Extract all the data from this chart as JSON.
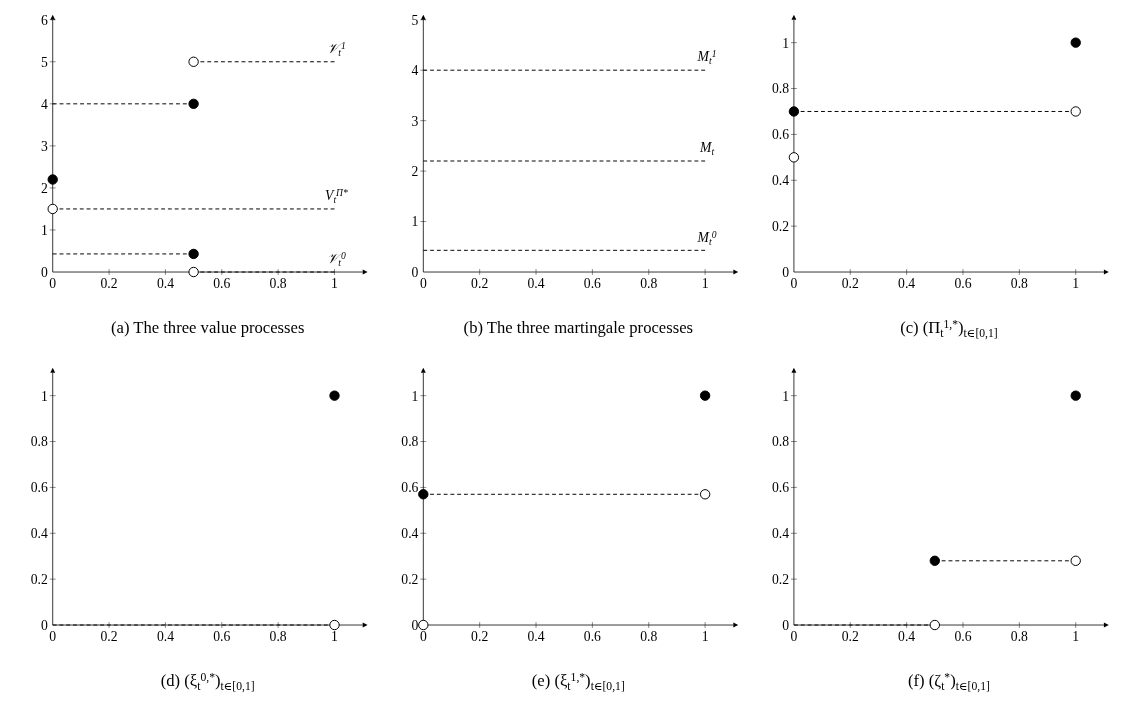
{
  "chart_data": [
    {
      "type": "line",
      "title": "(a) The three value processes",
      "xlim": [
        0,
        1.1
      ],
      "ylim": [
        0,
        6
      ],
      "xticks": [
        0,
        0.2,
        0.4,
        0.6,
        0.8,
        1
      ],
      "yticks": [
        0,
        1,
        2,
        3,
        4,
        5,
        6
      ],
      "series": [
        {
          "line_style": "dashed",
          "color": "#000000",
          "x": [
            0,
            0.5
          ],
          "values": [
            4,
            4
          ]
        },
        {
          "name": "𝒱$_{t}$$^{1}$",
          "line_style": "dashed",
          "color": "#000000",
          "x": [
            0.5,
            1
          ],
          "values": [
            5,
            5
          ]
        },
        {
          "name": "V$_{t}$$^{Π*}$",
          "line_style": "dashed",
          "color": "#000000",
          "x": [
            0,
            1
          ],
          "values": [
            1.5,
            1.5
          ]
        },
        {
          "line_style": "dashed",
          "color": "#000000",
          "x": [
            0,
            0.5
          ],
          "values": [
            0.43,
            0.43
          ]
        },
        {
          "name": "𝒱$_{t}$$^{0}$",
          "line_style": "dashed",
          "color": "#000000",
          "x": [
            0.5,
            1
          ],
          "values": [
            0,
            0
          ]
        },
        {
          "type": "scatter",
          "marker": "circle",
          "color": "#000000",
          "x": [
            0.5,
            0,
            0.5
          ],
          "values": [
            4,
            2.2,
            0.43
          ]
        },
        {
          "type": "scatter",
          "marker": "circle",
          "color": "#ffffff",
          "x": [
            0.5,
            0,
            0.5
          ],
          "values": [
            5,
            1.5,
            0
          ]
        }
      ]
    },
    {
      "type": "line",
      "title": "(b) The three martingale processes",
      "xlim": [
        0,
        1.1
      ],
      "ylim": [
        0,
        5
      ],
      "xticks": [
        0,
        0.2,
        0.4,
        0.6,
        0.8,
        1
      ],
      "yticks": [
        0,
        1,
        2,
        3,
        4,
        5
      ],
      "series": [
        {
          "name": "M$_{t}$$^{1}$",
          "line_style": "dashed",
          "color": "#000000",
          "x": [
            0,
            1
          ],
          "values": [
            4,
            4
          ]
        },
        {
          "name": "M$_{t}$",
          "line_style": "dashed",
          "color": "#000000",
          "x": [
            0,
            1
          ],
          "values": [
            2.2,
            2.2
          ]
        },
        {
          "name": "M$_{t}$$^{0}$",
          "line_style": "dashed",
          "color": "#000000",
          "x": [
            0,
            1
          ],
          "values": [
            0.43,
            0.43
          ]
        }
      ]
    },
    {
      "type": "line",
      "title": "(c) (Π$_{t}$$^{1,*}$)$_{t∈[0,1]}$",
      "xlim": [
        0,
        1.1
      ],
      "ylim": [
        0,
        1.1
      ],
      "xticks": [
        0,
        0.2,
        0.4,
        0.6,
        0.8,
        1
      ],
      "yticks": [
        0,
        0.2,
        0.4,
        0.6,
        0.8,
        1
      ],
      "series": [
        {
          "line_style": "dashed",
          "color": "#000000",
          "x": [
            0,
            1
          ],
          "values": [
            0.7,
            0.7
          ]
        },
        {
          "type": "scatter",
          "marker": "circle",
          "color": "#000000",
          "x": [
            0,
            1
          ],
          "values": [
            0.7,
            1
          ]
        },
        {
          "type": "scatter",
          "marker": "circle",
          "color": "#ffffff",
          "x": [
            0,
            1
          ],
          "values": [
            0.5,
            0.7
          ]
        }
      ]
    },
    {
      "type": "line",
      "title": "(d) (ξ$_{t}$$^{0,*}$)$_{t∈[0,1]}$",
      "xlim": [
        0,
        1.1
      ],
      "ylim": [
        0,
        1.1
      ],
      "xticks": [
        0,
        0.2,
        0.4,
        0.6,
        0.8,
        1
      ],
      "yticks": [
        0,
        0.2,
        0.4,
        0.6,
        0.8,
        1
      ],
      "series": [
        {
          "line_style": "dashed",
          "color": "#000000",
          "x": [
            0,
            1
          ],
          "values": [
            0,
            0
          ]
        },
        {
          "type": "scatter",
          "marker": "circle",
          "color": "#000000",
          "x": [
            1
          ],
          "values": [
            1
          ]
        },
        {
          "type": "scatter",
          "marker": "circle",
          "color": "#ffffff",
          "x": [
            1
          ],
          "values": [
            0
          ]
        }
      ]
    },
    {
      "type": "line",
      "title": "(e) (ξ$_{t}$$^{1,*}$)$_{t∈[0,1]}$",
      "xlim": [
        0,
        1.1
      ],
      "ylim": [
        0,
        1.1
      ],
      "xticks": [
        0,
        0.2,
        0.4,
        0.6,
        0.8,
        1
      ],
      "yticks": [
        0,
        0.2,
        0.4,
        0.6,
        0.8,
        1
      ],
      "series": [
        {
          "line_style": "dashed",
          "color": "#000000",
          "x": [
            0,
            1
          ],
          "values": [
            0.57,
            0.57
          ]
        },
        {
          "type": "scatter",
          "marker": "circle",
          "color": "#000000",
          "x": [
            0,
            1
          ],
          "values": [
            0.57,
            1
          ]
        },
        {
          "type": "scatter",
          "marker": "circle",
          "color": "#ffffff",
          "x": [
            0,
            1
          ],
          "values": [
            0,
            0.57
          ]
        }
      ]
    },
    {
      "type": "line",
      "title": "(f) (ζ$_{t}$$^{*}$)$_{t∈[0,1]}$",
      "xlim": [
        0,
        1.1
      ],
      "ylim": [
        0,
        1.1
      ],
      "xticks": [
        0,
        0.2,
        0.4,
        0.6,
        0.8,
        1
      ],
      "yticks": [
        0,
        0.2,
        0.4,
        0.6,
        0.8,
        1
      ],
      "series": [
        {
          "line_style": "dashed",
          "color": "#000000",
          "x": [
            0,
            0.5
          ],
          "values": [
            0,
            0
          ]
        },
        {
          "line_style": "dashed",
          "color": "#000000",
          "x": [
            0.5,
            1
          ],
          "values": [
            0.28,
            0.28
          ]
        },
        {
          "type": "scatter",
          "marker": "circle",
          "color": "#000000",
          "x": [
            0.5,
            1
          ],
          "values": [
            0.28,
            1
          ]
        },
        {
          "type": "scatter",
          "marker": "circle",
          "color": "#ffffff",
          "x": [
            0.5,
            1
          ],
          "values": [
            0,
            0.28
          ]
        }
      ]
    }
  ]
}
